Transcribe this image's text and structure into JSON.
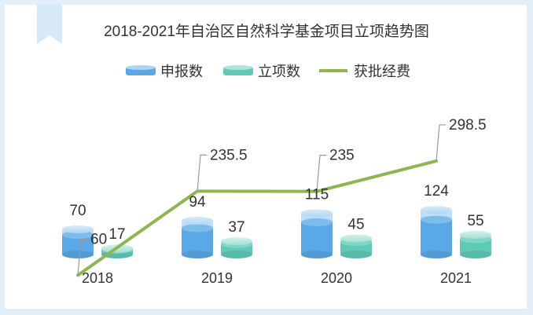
{
  "chart_data": {
    "type": "bar",
    "title": "2018-2021年自治区自然科学基金项目立项趋势图",
    "categories": [
      "2018",
      "2019",
      "2020",
      "2021"
    ],
    "series": [
      {
        "name": "申报数",
        "type": "bar",
        "values": [
          70,
          94,
          115,
          124
        ],
        "color": "#5aa9e6"
      },
      {
        "name": "立项数",
        "type": "bar",
        "values": [
          17,
          37,
          45,
          55
        ],
        "color": "#5fcab8"
      },
      {
        "name": "获批经费",
        "type": "line",
        "values": [
          60,
          235.5,
          235,
          298.5
        ],
        "color": "#8db650"
      }
    ],
    "legend_position": "top-center",
    "grid": false
  }
}
